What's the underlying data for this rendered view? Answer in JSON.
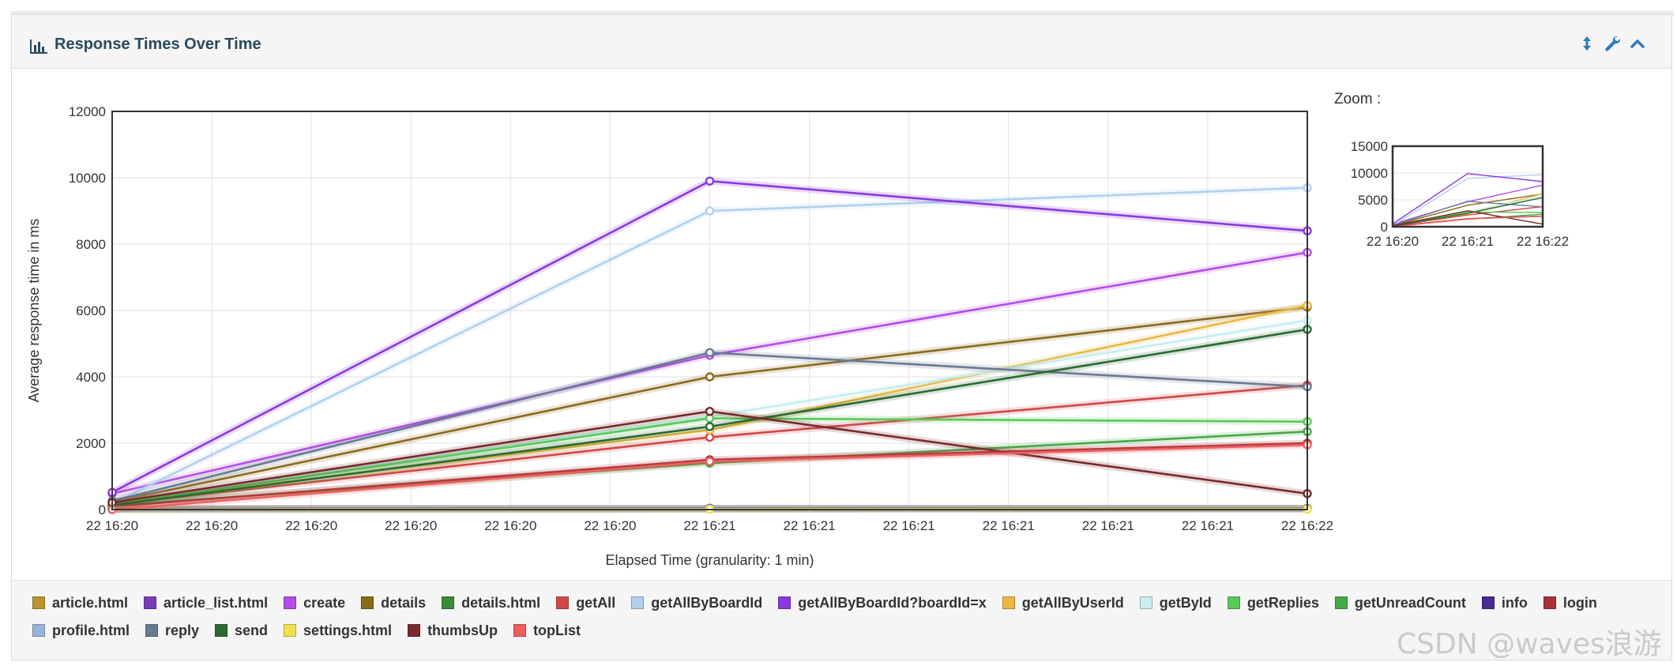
{
  "panel": {
    "title": "Response Times Over Time",
    "title_icon": "bar-chart-icon",
    "buttons": [
      {
        "name": "resize-vertical-icon"
      },
      {
        "name": "wrench-icon"
      },
      {
        "name": "chevron-up-icon"
      }
    ]
  },
  "zoom": {
    "label": "Zoom :",
    "y_ticks": [
      "15000",
      "10000",
      "5000",
      "0"
    ],
    "x_ticks": [
      "22 16:20",
      "22 16:21",
      "22 16:22"
    ],
    "ylim": [
      0,
      15000
    ]
  },
  "watermark": "CSDN @waves浪游",
  "chart_data": {
    "type": "line",
    "title": "",
    "xlabel": "Elapsed Time (granularity: 1 min)",
    "ylabel": "Average response time in ms",
    "ylim": [
      0,
      12000
    ],
    "yticks": [
      "0",
      "2000",
      "4000",
      "6000",
      "8000",
      "10000",
      "12000"
    ],
    "xticks": [
      "22 16:20",
      "22 16:20",
      "22 16:20",
      "22 16:20",
      "22 16:20",
      "22 16:20",
      "22 16:21",
      "22 16:21",
      "22 16:21",
      "22 16:21",
      "22 16:21",
      "22 16:21",
      "22 16:22"
    ],
    "x": [
      "22 16:20",
      "22 16:21",
      "22 16:22"
    ],
    "grid": true,
    "legend_position": "bottom",
    "series": [
      {
        "name": "article.html",
        "color": "#b8962e",
        "values": [
          20,
          30,
          40
        ]
      },
      {
        "name": "article_list.html",
        "color": "#7a3db8",
        "values": [
          30,
          40,
          30
        ]
      },
      {
        "name": "create",
        "color": "#b44ee8",
        "values": [
          480,
          4650,
          7750
        ]
      },
      {
        "name": "details",
        "color": "#8a6a1e",
        "values": [
          230,
          4000,
          6100
        ]
      },
      {
        "name": "details.html",
        "color": "#3a8a3a",
        "values": [
          10,
          20,
          30
        ]
      },
      {
        "name": "getAll",
        "color": "#d04848",
        "values": [
          150,
          2180,
          3750
        ]
      },
      {
        "name": "getAllByBoardId",
        "color": "#b0d0ee",
        "values": [
          180,
          9000,
          9700
        ]
      },
      {
        "name": "getAllByBoardId?boardId=x",
        "color": "#8a3ae0",
        "values": [
          520,
          9900,
          8400
        ]
      },
      {
        "name": "getAllByUserId",
        "color": "#e8b840",
        "values": [
          200,
          2400,
          6150
        ]
      },
      {
        "name": "getById",
        "color": "#c8eef0",
        "values": [
          210,
          2800,
          5700
        ]
      },
      {
        "name": "getReplies",
        "color": "#5ac85a",
        "values": [
          160,
          2750,
          2650
        ]
      },
      {
        "name": "getUnreadCount",
        "color": "#48a848",
        "values": [
          120,
          1400,
          2350
        ]
      },
      {
        "name": "info",
        "color": "#4a2a90",
        "values": [
          15,
          20,
          25
        ]
      },
      {
        "name": "login",
        "color": "#a83238",
        "values": [
          90,
          1500,
          2000
        ]
      },
      {
        "name": "profile.html",
        "color": "#98b4d8",
        "values": [
          10,
          15,
          20
        ]
      },
      {
        "name": "reply",
        "color": "#6a7a92",
        "values": [
          260,
          4730,
          3700
        ]
      },
      {
        "name": "send",
        "color": "#2a6a32",
        "values": [
          130,
          2500,
          5430
        ]
      },
      {
        "name": "settings.html",
        "color": "#f0e050",
        "values": [
          5,
          10,
          10
        ]
      },
      {
        "name": "thumbsUp",
        "color": "#7a2a2a",
        "values": [
          210,
          2960,
          480
        ]
      },
      {
        "name": "topList",
        "color": "#ee6060",
        "values": [
          0,
          1450,
          1950
        ]
      }
    ]
  }
}
